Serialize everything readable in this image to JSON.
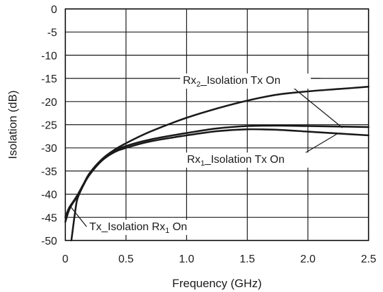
{
  "chart_data": {
    "type": "line",
    "title": "",
    "xlabel": "Frequency (GHz)",
    "ylabel": "Isolation (dB)",
    "xlim": [
      0,
      2.5
    ],
    "ylim": [
      -50,
      0
    ],
    "x_ticks": [
      {
        "value": 0,
        "label": "0"
      },
      {
        "value": 0.5,
        "label": "0.5"
      },
      {
        "value": 1.0,
        "label": "1.0"
      },
      {
        "value": 1.5,
        "label": "1.5"
      },
      {
        "value": 2.0,
        "label": "2.0"
      },
      {
        "value": 2.5,
        "label": "2.5"
      }
    ],
    "y_ticks": [
      {
        "value": 0,
        "label": "0"
      },
      {
        "value": -5,
        "label": "-5"
      },
      {
        "value": -10,
        "label": "-10"
      },
      {
        "value": -15,
        "label": "-15"
      },
      {
        "value": -20,
        "label": "-20"
      },
      {
        "value": -25,
        "label": "-25"
      },
      {
        "value": -30,
        "label": "-30"
      },
      {
        "value": -35,
        "label": "-35"
      },
      {
        "value": -40,
        "label": "-40"
      },
      {
        "value": -45,
        "label": "-45"
      },
      {
        "value": -50,
        "label": "-50"
      }
    ],
    "grid": true,
    "series": [
      {
        "name": "Rx2_Isolation Tx On",
        "label_main": "Rx",
        "label_sub": "2",
        "label_rest": "_Isolation Tx On",
        "x": [
          0.05,
          0.08,
          0.1,
          0.15,
          0.2,
          0.3,
          0.4,
          0.5,
          0.7,
          1.0,
          1.25,
          1.5,
          1.75,
          2.0,
          2.25,
          2.5
        ],
        "y": [
          -50,
          -44,
          -41,
          -38,
          -35.5,
          -32.5,
          -30.5,
          -29,
          -26.5,
          -23.5,
          -21.5,
          -19.8,
          -18.5,
          -17.8,
          -17.3,
          -16.8
        ]
      },
      {
        "name": "Rx1_Isolation Tx On",
        "label_main": "Rx",
        "label_sub": "1",
        "label_rest": "_Isolation Tx On",
        "x": [
          0,
          0.03,
          0.06,
          0.1,
          0.15,
          0.2,
          0.3,
          0.4,
          0.5,
          0.7,
          1.0,
          1.25,
          1.5,
          1.75,
          2.0,
          2.25,
          2.5
        ],
        "y": [
          -46,
          -43.5,
          -42,
          -40.5,
          -38,
          -35.8,
          -32.8,
          -31,
          -30,
          -28.6,
          -27.3,
          -26.4,
          -26,
          -26.1,
          -26.5,
          -26.9,
          -27.3
        ]
      },
      {
        "name": "Tx_Isolation Rx1 On",
        "label_main": "Tx_Isolation Rx",
        "label_sub": "1",
        "label_rest": " On",
        "x": [
          0,
          0.03,
          0.06,
          0.1,
          0.15,
          0.2,
          0.3,
          0.4,
          0.5,
          0.7,
          1.0,
          1.25,
          1.5,
          1.75,
          2.0,
          2.25,
          2.5
        ],
        "y": [
          -45,
          -43,
          -41.8,
          -40.2,
          -37.8,
          -35.5,
          -32.6,
          -30.8,
          -29.6,
          -28.2,
          -26.8,
          -25.8,
          -25.3,
          -25.2,
          -25.3,
          -25.4,
          -25.5
        ]
      }
    ]
  }
}
